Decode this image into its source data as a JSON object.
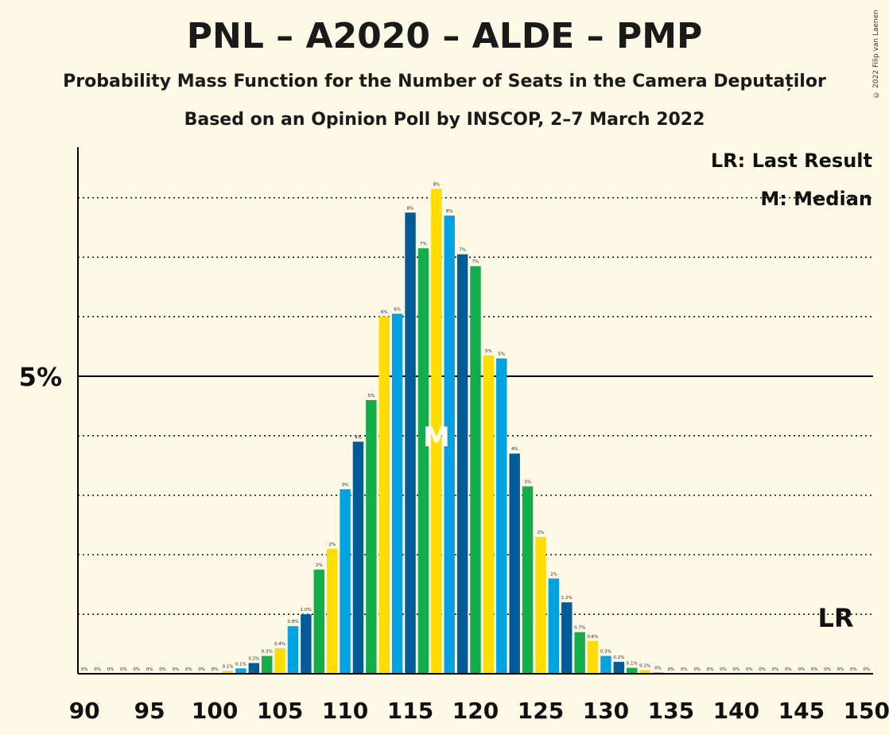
{
  "title": "PNL – A2020 – ALDE – PMP",
  "subtitle1": "Probability Mass Function for the Number of Seats in the Camera Deputaților",
  "subtitle2": "Based on an Opinion Poll by INSCOP, 2–7 March 2022",
  "copyright": "© 2022 Filip van Laenen",
  "legend": {
    "lr": "LR: Last Result",
    "median": "M: Median"
  },
  "markers": {
    "median_label": "M",
    "median_seat": 117,
    "lr_label": "LR",
    "lr_seat": 148
  },
  "colors": [
    "#00A3E0",
    "#005B96",
    "#13AE4B",
    "#FFDD00"
  ],
  "chart_data": {
    "type": "bar",
    "x": [
      90,
      91,
      92,
      93,
      94,
      95,
      96,
      97,
      98,
      99,
      100,
      101,
      102,
      103,
      104,
      105,
      106,
      107,
      108,
      109,
      110,
      111,
      112,
      113,
      114,
      115,
      116,
      117,
      118,
      119,
      120,
      121,
      122,
      123,
      124,
      125,
      126,
      127,
      128,
      129,
      130,
      131,
      132,
      133,
      134,
      135,
      136,
      137,
      138,
      139,
      140,
      141,
      142,
      143,
      144,
      145,
      146,
      147,
      148,
      149,
      150
    ],
    "values": [
      0,
      0,
      0,
      0,
      0,
      0,
      0,
      0,
      0,
      0,
      0,
      0.05,
      0.09,
      0.18,
      0.3,
      0.43,
      0.8,
      1.0,
      1.75,
      2.1,
      3.1,
      3.9,
      4.6,
      6.0,
      6.05,
      7.75,
      7.15,
      8.15,
      7.7,
      7.05,
      6.85,
      5.35,
      5.3,
      3.7,
      3.15,
      2.3,
      1.6,
      1.2,
      0.7,
      0.55,
      0.3,
      0.2,
      0.1,
      0.06,
      0.02,
      0,
      0,
      0,
      0,
      0,
      0,
      0,
      0,
      0,
      0,
      0,
      0,
      0,
      0,
      0,
      0
    ],
    "labels": [
      "0%",
      "0%",
      "0%",
      "0%",
      "0%",
      "0%",
      "0%",
      "0%",
      "0%",
      "0%",
      "0%",
      "0.1%",
      "0.1%",
      "0.2%",
      "0.3%",
      "0.4%",
      "0.8%",
      "1.0%",
      "2%",
      "2%",
      "3%",
      "4%",
      "5%",
      "6%",
      "6%",
      "8%",
      "7%",
      "8%",
      "8%",
      "7%",
      "7%",
      "5%",
      "5%",
      "4%",
      "3%",
      "2%",
      "2%",
      "1.2%",
      "0.7%",
      "0.6%",
      "0.3%",
      "0.2%",
      "0.1%",
      "0.1%",
      "0%",
      "0%",
      "0%",
      "0%",
      "0%",
      "0%",
      "0%",
      "0%",
      "0%",
      "0%",
      "0%",
      "0%",
      "0%",
      "0%",
      "0%",
      "0%",
      "0%"
    ],
    "x_ticks": [
      90,
      95,
      100,
      105,
      110,
      115,
      120,
      125,
      130,
      135,
      140,
      145,
      150
    ],
    "y_tick_label": "5%",
    "y_tick_value": 5,
    "gridlines": [
      1,
      2,
      3,
      4,
      5,
      6,
      7,
      8
    ],
    "ylim": [
      0,
      8.85
    ],
    "xlim": [
      90,
      150
    ]
  }
}
